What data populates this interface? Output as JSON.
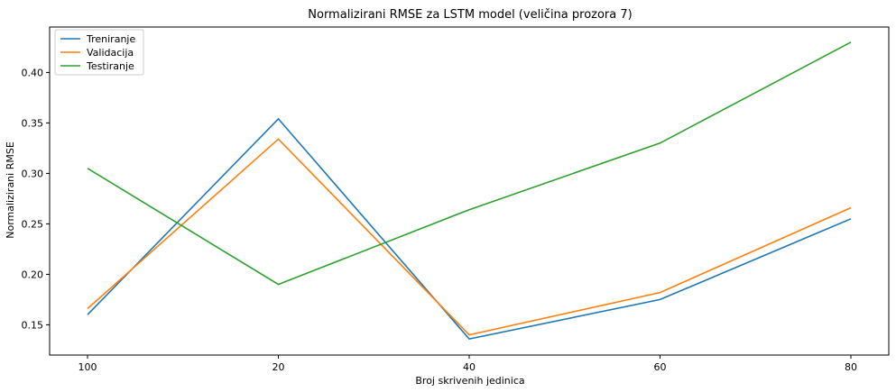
{
  "chart_data": {
    "type": "line",
    "title": "Normalizirani RMSE za LSTM model (veličina prozora 7)",
    "xlabel": "Broj skrivenih jedinica",
    "ylabel": "Normalizirani RMSE",
    "categories": [
      "100",
      "20",
      "40",
      "60",
      "80"
    ],
    "ylim": [
      0.12,
      0.445
    ],
    "yticks": [
      "0.15",
      "0.20",
      "0.25",
      "0.30",
      "0.35",
      "0.40"
    ],
    "ytick_values": [
      0.15,
      0.2,
      0.25,
      0.3,
      0.35,
      0.4
    ],
    "grid": false,
    "legend_position": "top-left",
    "series": [
      {
        "name": "Treniranje",
        "color": "#1f77b4",
        "values": [
          0.16,
          0.354,
          0.136,
          0.175,
          0.255
        ]
      },
      {
        "name": "Validacija",
        "color": "#ff7f0e",
        "values": [
          0.166,
          0.334,
          0.14,
          0.182,
          0.266
        ]
      },
      {
        "name": "Testiranje",
        "color": "#2ca02c",
        "values": [
          0.305,
          0.19,
          0.264,
          0.33,
          0.43
        ]
      }
    ]
  }
}
